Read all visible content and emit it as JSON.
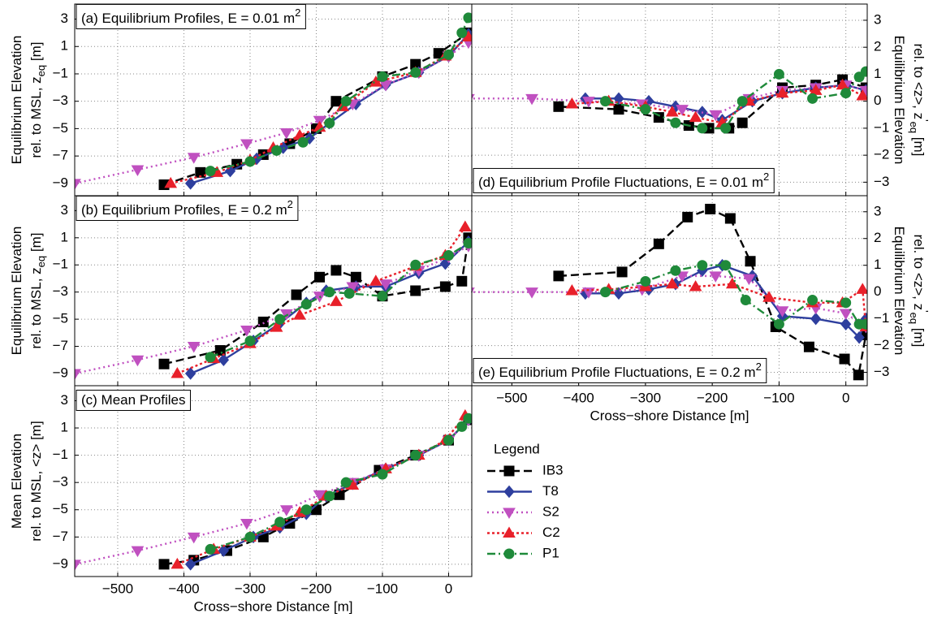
{
  "legend_title": "Legend",
  "chart_data": [
    {
      "type": "line",
      "title": [
        {
          "text": "(a) Equilibrium Profiles, E = 0.01 m"
        },
        {
          "text": "2",
          "shift": "sup"
        }
      ],
      "title_corner": "top-left",
      "y_axis_side": "left",
      "y_label": [
        [
          {
            "text": "Equilibrium Elevation"
          }
        ],
        [
          {
            "text": "rel. to MSL, z"
          },
          {
            "text": "eq",
            "shift": "sub"
          },
          {
            "text": " [m]"
          }
        ]
      ],
      "xlim": [
        -565,
        35
      ],
      "ylim": [
        -9.9,
        4.1
      ],
      "grid": true,
      "xticks": [
        {
          "value": -500,
          "label": "−500"
        },
        {
          "value": -400,
          "label": "−400"
        },
        {
          "value": -300,
          "label": "−300"
        },
        {
          "value": -200,
          "label": "−200"
        },
        {
          "value": -100,
          "label": "−100"
        },
        0
      ],
      "yticks": [
        3,
        1,
        {
          "value": -1,
          "label": "−1"
        },
        {
          "value": -3,
          "label": "−3"
        },
        {
          "value": -5,
          "label": "−5"
        },
        {
          "value": -7,
          "label": "−7"
        },
        {
          "value": -9,
          "label": "−9"
        }
      ],
      "series": [
        {
          "name": "IB3",
          "color": "#000000",
          "dash": "10 5",
          "marker": "square",
          "x": [
            -430,
            -375,
            -320,
            -280,
            -240,
            -200,
            -170,
            -100,
            -50,
            -15,
            30
          ],
          "values": [
            -9.1,
            -8.2,
            -7.6,
            -6.9,
            -6.1,
            -5.0,
            -3.0,
            -1.2,
            -0.3,
            0.5,
            2.0
          ]
        },
        {
          "name": "T8",
          "color": "#2e3f9e",
          "dash": "none",
          "marker": "diamond",
          "x": [
            -390,
            -330,
            -290,
            -250,
            -210,
            -180,
            -140,
            -95,
            -45,
            0,
            30
          ],
          "values": [
            -9.0,
            -8.1,
            -7.2,
            -6.4,
            -5.7,
            -4.6,
            -3.2,
            -1.8,
            -0.9,
            0.3,
            1.9
          ]
        },
        {
          "name": "S2",
          "color": "#c050c0",
          "dash": "2 4",
          "marker": "tri-down",
          "x": [
            -565,
            -470,
            -385,
            -305,
            -245,
            -195,
            -145,
            -95,
            -45,
            0,
            30
          ],
          "values": [
            -9.0,
            -8.0,
            -7.1,
            -6.1,
            -5.3,
            -4.4,
            -3.2,
            -1.8,
            -0.9,
            0.3,
            1.3
          ]
        },
        {
          "name": "C2",
          "color": "#e8202a",
          "dash": "3 3",
          "marker": "tri-up",
          "x": [
            -420,
            -350,
            -300,
            -265,
            -225,
            -195,
            -160,
            -110,
            -50,
            -5,
            30
          ],
          "values": [
            -9.0,
            -8.2,
            -7.3,
            -6.4,
            -5.5,
            -4.9,
            -3.4,
            -1.6,
            -0.9,
            0.3,
            1.7
          ]
        },
        {
          "name": "P1",
          "color": "#1f8a3a",
          "dash": "10 4 2 4",
          "marker": "circle",
          "x": [
            -360,
            -300,
            -260,
            -220,
            -180,
            -155,
            -100,
            -50,
            0,
            20,
            30
          ],
          "values": [
            -8.1,
            -7.4,
            -6.6,
            -6.0,
            -4.6,
            -3.0,
            -1.2,
            -0.9,
            0.4,
            2.0,
            3.1
          ]
        }
      ]
    },
    {
      "type": "line",
      "title": [
        {
          "text": "(b) Equilibrium Profiles, E = 0.2 m"
        },
        {
          "text": "2",
          "shift": "sup"
        }
      ],
      "title_corner": "top-left",
      "y_axis_side": "left",
      "y_label": [
        [
          {
            "text": "Equilibrium Elevation"
          }
        ],
        [
          {
            "text": "rel. to MSL, z"
          },
          {
            "text": "eq",
            "shift": "sub"
          },
          {
            "text": " [m]"
          }
        ]
      ],
      "xlim": [
        -565,
        35
      ],
      "ylim": [
        -9.9,
        4.1
      ],
      "grid": true,
      "xticks": [
        {
          "value": -500,
          "label": "−500"
        },
        {
          "value": -400,
          "label": "−400"
        },
        {
          "value": -300,
          "label": "−300"
        },
        {
          "value": -200,
          "label": "−200"
        },
        {
          "value": -100,
          "label": "−100"
        },
        0
      ],
      "yticks": [
        3,
        1,
        {
          "value": -1,
          "label": "−1"
        },
        {
          "value": -3,
          "label": "−3"
        },
        {
          "value": -5,
          "label": "−5"
        },
        {
          "value": -7,
          "label": "−7"
        },
        {
          "value": -9,
          "label": "−9"
        }
      ],
      "series": [
        {
          "x": [
            -430,
            -345,
            -280,
            -230,
            -195,
            -170,
            -140,
            -100,
            -50,
            -5,
            20,
            30
          ],
          "values": [
            -8.3,
            -7.3,
            -5.2,
            -3.2,
            -1.9,
            -1.4,
            -1.9,
            -3.3,
            -2.9,
            -2.6,
            -2.2,
            1.0
          ]
        },
        {
          "x": [
            -390,
            -340,
            -295,
            -255,
            -215,
            -185,
            -140,
            -95,
            -45,
            -5,
            30
          ],
          "values": [
            -9.0,
            -8.0,
            -6.6,
            -5.3,
            -3.8,
            -2.9,
            -2.6,
            -2.6,
            -1.6,
            -0.9,
            0.7
          ]
        },
        {
          "x": [
            -565,
            -470,
            -385,
            -305,
            -245,
            -195,
            -145,
            -95,
            -45,
            0,
            30
          ],
          "values": [
            -9.0,
            -8.0,
            -7.0,
            -5.8,
            -4.6,
            -3.3,
            -2.6,
            -2.4,
            -1.4,
            -0.4,
            0.4
          ]
        },
        {
          "x": [
            -410,
            -355,
            -300,
            -260,
            -225,
            -170,
            -110,
            -50,
            -5,
            25
          ],
          "values": [
            -9.0,
            -7.9,
            -6.8,
            -5.6,
            -4.7,
            -3.7,
            -2.2,
            -1.1,
            -0.3,
            1.8
          ]
        },
        {
          "x": [
            -360,
            -300,
            -255,
            -215,
            -180,
            -150,
            -100,
            -50,
            0,
            30
          ],
          "values": [
            -7.8,
            -6.6,
            -5.0,
            -3.9,
            -3.0,
            -3.1,
            -3.3,
            -1.0,
            -0.3,
            0.6
          ]
        }
      ]
    },
    {
      "type": "line",
      "title": [
        {
          "text": "(c) Mean Profiles"
        }
      ],
      "title_corner": "top-left",
      "y_axis_side": "left",
      "y_label": [
        [
          {
            "text": "Mean Elevation"
          }
        ],
        [
          {
            "text": "rel. to MSL, <z> [m]"
          }
        ]
      ],
      "x_label": "Cross−shore Distance [m]",
      "xlim": [
        -565,
        35
      ],
      "ylim": [
        -9.9,
        4.1
      ],
      "grid": true,
      "xticks": [
        {
          "value": -500,
          "label": "−500"
        },
        {
          "value": -400,
          "label": "−400"
        },
        {
          "value": -300,
          "label": "−300"
        },
        {
          "value": -200,
          "label": "−200"
        },
        {
          "value": -100,
          "label": "−100"
        },
        0
      ],
      "yticks": [
        3,
        1,
        {
          "value": -1,
          "label": "−1"
        },
        {
          "value": -3,
          "label": "−3"
        },
        {
          "value": -5,
          "label": "−5"
        },
        {
          "value": -7,
          "label": "−7"
        },
        {
          "value": -9,
          "label": "−9"
        }
      ],
      "series": [
        {
          "x": [
            -430,
            -385,
            -335,
            -280,
            -240,
            -200,
            -165,
            -105,
            -50,
            0,
            30
          ],
          "values": [
            -9.0,
            -8.7,
            -8.0,
            -7.0,
            -6.0,
            -5.0,
            -3.9,
            -2.1,
            -1.0,
            0.1,
            1.6
          ]
        },
        {
          "x": [
            -390,
            -340,
            -295,
            -255,
            -215,
            -185,
            -145,
            -95,
            -45,
            0,
            30
          ],
          "values": [
            -9.0,
            -8.0,
            -7.0,
            -6.3,
            -5.3,
            -4.0,
            -3.1,
            -2.0,
            -1.0,
            0.1,
            1.6
          ]
        },
        {
          "x": [
            -565,
            -470,
            -385,
            -305,
            -245,
            -195,
            -145,
            -95,
            -45,
            0,
            30
          ],
          "values": [
            -9.0,
            -8.0,
            -7.0,
            -6.0,
            -5.0,
            -3.9,
            -3.0,
            -2.0,
            -1.0,
            0.1,
            1.6
          ]
        },
        {
          "x": [
            -410,
            -355,
            -300,
            -260,
            -225,
            -185,
            -145,
            -95,
            -45,
            -5,
            25
          ],
          "values": [
            -9.0,
            -7.9,
            -7.0,
            -6.2,
            -5.2,
            -4.0,
            -3.2,
            -2.0,
            -1.0,
            0.1,
            1.9
          ]
        },
        {
          "x": [
            -360,
            -300,
            -255,
            -215,
            -180,
            -155,
            -100,
            -50,
            0,
            20,
            30
          ],
          "values": [
            -7.9,
            -7.0,
            -5.9,
            -5.0,
            -4.0,
            -3.0,
            -2.4,
            -1.0,
            0.1,
            1.1,
            1.7
          ]
        }
      ]
    },
    {
      "type": "line",
      "title": [
        {
          "text": "(d) Equilibrium Profile Fluctuations, E = 0.01 m"
        },
        {
          "text": "2",
          "shift": "sup"
        }
      ],
      "title_corner": "bottom-left",
      "y_axis_side": "right",
      "y_label": [
        [
          {
            "text": "Equilibrium Elevation"
          }
        ],
        [
          {
            "text": "rel. to <z>, z"
          },
          {
            "text": "'",
            "shift": "sup"
          },
          {
            "text": "eq",
            "shift": "sub"
          },
          {
            "text": " [m]"
          }
        ]
      ],
      "xlim": [
        -560,
        32
      ],
      "ylim": [
        -3.5,
        3.6
      ],
      "grid": true,
      "xticks": [
        {
          "value": -500,
          "label": "−500"
        },
        {
          "value": -400,
          "label": "−400"
        },
        {
          "value": -300,
          "label": "−300"
        },
        {
          "value": -200,
          "label": "−200"
        },
        {
          "value": -100,
          "label": "−100"
        },
        0
      ],
      "yticks": [
        3,
        2,
        1,
        0,
        {
          "value": -1,
          "label": "−1"
        },
        {
          "value": -2,
          "label": "−2"
        },
        {
          "value": -3,
          "label": "−3"
        }
      ],
      "series": [
        {
          "x": [
            -430,
            -340,
            -280,
            -235,
            -205,
            -175,
            -155,
            -95,
            -45,
            -5,
            30
          ],
          "values": [
            -0.2,
            -0.3,
            -0.6,
            -0.9,
            -1.0,
            -1.0,
            -0.8,
            0.5,
            0.6,
            0.8,
            0.5
          ]
        },
        {
          "x": [
            -390,
            -340,
            -295,
            -255,
            -215,
            -185,
            -140,
            -95,
            -45,
            0,
            30
          ],
          "values": [
            0.1,
            0.1,
            0.0,
            -0.2,
            -0.4,
            -0.7,
            0.0,
            0.3,
            0.5,
            0.6,
            0.4
          ]
        },
        {
          "x": [
            -565,
            -470,
            -385,
            -305,
            -245,
            -195,
            -145,
            -95,
            -45,
            0,
            30
          ],
          "values": [
            0.1,
            0.1,
            0.0,
            -0.1,
            -0.3,
            -0.5,
            0.1,
            0.4,
            0.5,
            0.6,
            0.4
          ]
        },
        {
          "x": [
            -410,
            -355,
            -300,
            -260,
            -225,
            -185,
            -145,
            -95,
            -45,
            -5,
            25
          ],
          "values": [
            -0.1,
            0.0,
            -0.2,
            -0.4,
            -0.6,
            -0.8,
            0.0,
            0.3,
            0.4,
            0.6,
            0.2
          ]
        },
        {
          "x": [
            -360,
            -300,
            -255,
            -215,
            -180,
            -155,
            -100,
            -50,
            0,
            20,
            30
          ],
          "values": [
            0.0,
            -0.3,
            -0.8,
            -1.0,
            -1.0,
            0.0,
            1.0,
            0.1,
            0.3,
            0.9,
            1.1
          ]
        }
      ]
    },
    {
      "type": "line",
      "title": [
        {
          "text": "(e) Equilibrium Profile Fluctuations, E = 0.2 m"
        },
        {
          "text": "2",
          "shift": "sup"
        }
      ],
      "title_corner": "bottom-left",
      "y_axis_side": "right",
      "y_label": [
        [
          {
            "text": "Equilibrium Elevation"
          }
        ],
        [
          {
            "text": "rel. to <z>, z"
          },
          {
            "text": "'",
            "shift": "sup"
          },
          {
            "text": "eq",
            "shift": "sub"
          },
          {
            "text": " [m]"
          }
        ]
      ],
      "x_label": "Cross−shore Distance [m]",
      "xlim": [
        -560,
        32
      ],
      "ylim": [
        -3.5,
        3.6
      ],
      "grid": true,
      "xticks": [
        {
          "value": -500,
          "label": "−500"
        },
        {
          "value": -400,
          "label": "−400"
        },
        {
          "value": -300,
          "label": "−300"
        },
        {
          "value": -200,
          "label": "−200"
        },
        {
          "value": -100,
          "label": "−100"
        },
        0
      ],
      "yticks": [
        3,
        2,
        1,
        0,
        {
          "value": -1,
          "label": "−1"
        },
        {
          "value": -2,
          "label": "−2"
        },
        {
          "value": -3,
          "label": "−3"
        }
      ],
      "series": [
        {
          "x": [
            -430,
            -335,
            -280,
            -237,
            -203,
            -173,
            -143,
            -105,
            -55,
            -2,
            19,
            30
          ],
          "values": [
            0.6,
            0.75,
            1.8,
            2.8,
            3.1,
            2.75,
            1.15,
            -1.3,
            -2.05,
            -2.5,
            -3.1,
            -1.6
          ]
        },
        {
          "x": [
            -390,
            -340,
            -295,
            -255,
            -215,
            -185,
            -140,
            -95,
            -45,
            0,
            20,
            30
          ],
          "values": [
            -0.05,
            -0.05,
            0.1,
            0.3,
            0.8,
            1.0,
            0.6,
            -0.9,
            -1.0,
            -1.2,
            -1.7,
            -1.0
          ]
        },
        {
          "x": [
            -565,
            -470,
            -385,
            -305,
            -245,
            -195,
            -145,
            -95,
            -45,
            0,
            30
          ],
          "values": [
            0.0,
            0.0,
            0.0,
            0.1,
            0.6,
            0.6,
            0.5,
            -0.7,
            -0.6,
            -0.8,
            -1.3
          ]
        },
        {
          "x": [
            -410,
            -355,
            -300,
            -260,
            -225,
            -170,
            -115,
            -50,
            -5,
            25,
            30
          ],
          "values": [
            0.05,
            0.1,
            0.2,
            0.3,
            0.2,
            0.3,
            -0.2,
            -0.4,
            -0.4,
            0.1,
            -1.3
          ]
        },
        {
          "x": [
            -360,
            -300,
            -255,
            -215,
            -180,
            -150,
            -100,
            -50,
            0,
            20,
            30
          ],
          "values": [
            0.0,
            0.4,
            0.8,
            1.0,
            1.0,
            -0.3,
            -1.2,
            -0.3,
            -0.4,
            -1.2,
            -1.2
          ]
        }
      ]
    }
  ]
}
